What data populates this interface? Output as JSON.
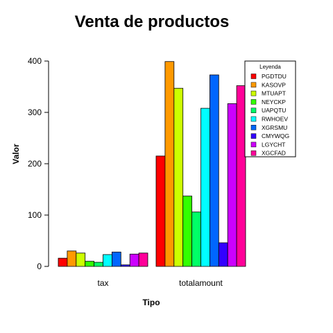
{
  "chart_data": {
    "type": "bar",
    "title": "Venta de productos",
    "xlabel": "Tipo",
    "ylabel": "Valor",
    "ylim": [
      0,
      400
    ],
    "yticks": [
      0,
      100,
      200,
      300,
      400
    ],
    "categories": [
      "tax",
      "totalamount"
    ],
    "legend": {
      "title": "Leyenda",
      "position": "top-right"
    },
    "series": [
      {
        "name": "PGDTDU",
        "color": "#FF0000",
        "values": [
          16,
          215
        ]
      },
      {
        "name": "KASOVP",
        "color": "#FF9900",
        "values": [
          30,
          399
        ]
      },
      {
        "name": "MTUAPT",
        "color": "#CCFF00",
        "values": [
          26,
          347
        ]
      },
      {
        "name": "NEYCKP",
        "color": "#33FF00",
        "values": [
          10,
          137
        ]
      },
      {
        "name": "UAPQTU",
        "color": "#00FF66",
        "values": [
          8,
          106
        ]
      },
      {
        "name": "RWHOEV",
        "color": "#00FFFF",
        "values": [
          23,
          308
        ]
      },
      {
        "name": "XGRSMU",
        "color": "#0066FF",
        "values": [
          28,
          373
        ]
      },
      {
        "name": "CMYWQG",
        "color": "#3300FF",
        "values": [
          3,
          46
        ]
      },
      {
        "name": "LGYCHT",
        "color": "#CC00FF",
        "values": [
          24,
          317
        ]
      },
      {
        "name": "XGCFAD",
        "color": "#FF0099",
        "values": [
          26,
          352
        ]
      }
    ]
  }
}
